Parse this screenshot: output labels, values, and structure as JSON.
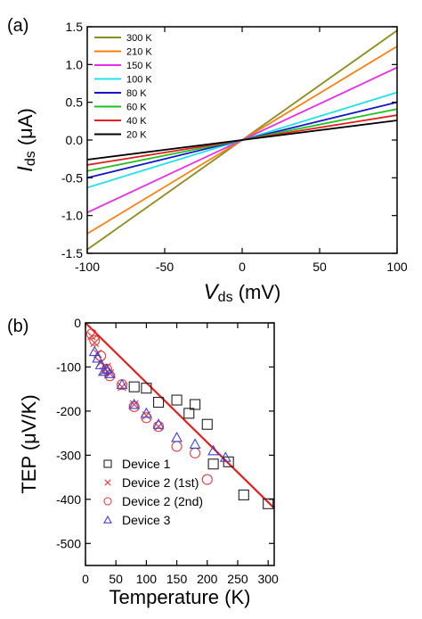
{
  "chart_data": [
    {
      "type": "line",
      "panel_label": "(a)",
      "xlabel_main": "V",
      "xlabel_sub": "ds",
      "xlabel_unit": " (mV)",
      "ylabel_main": "I",
      "ylabel_sub": "ds",
      "ylabel_unit": " (μA)",
      "xlim": [
        -100,
        100
      ],
      "ylim": [
        -1.5,
        1.5
      ],
      "xticks": [
        -100,
        -50,
        0,
        50,
        100
      ],
      "yticks": [
        -1.5,
        -1.0,
        -0.5,
        0.0,
        0.5,
        1.0,
        1.5
      ],
      "legend_position": "top-left",
      "series": [
        {
          "name": "300 K",
          "color": "#8c8c1f",
          "x": [
            -100,
            100
          ],
          "y": [
            -1.45,
            1.45
          ]
        },
        {
          "name": "210 K",
          "color": "#ff7f0e",
          "x": [
            -100,
            100
          ],
          "y": [
            -1.24,
            1.24
          ]
        },
        {
          "name": "150 K",
          "color": "#e62ee6",
          "x": [
            -100,
            100
          ],
          "y": [
            -0.96,
            0.96
          ]
        },
        {
          "name": "100 K",
          "color": "#22e0e8",
          "x": [
            -100,
            100
          ],
          "y": [
            -0.63,
            0.63
          ]
        },
        {
          "name": "80 K",
          "color": "#1414c8",
          "x": [
            -100,
            100
          ],
          "y": [
            -0.5,
            0.5
          ]
        },
        {
          "name": "60 K",
          "color": "#22c022",
          "x": [
            -100,
            100
          ],
          "y": [
            -0.41,
            0.41
          ]
        },
        {
          "name": "40 K",
          "color": "#e02020",
          "x": [
            -100,
            100
          ],
          "y": [
            -0.33,
            0.33
          ]
        },
        {
          "name": "20 K",
          "color": "#000000",
          "x": [
            -100,
            100
          ],
          "y": [
            -0.26,
            0.26
          ]
        }
      ]
    },
    {
      "type": "scatter",
      "panel_label": "(b)",
      "xlabel": "Temperature (K)",
      "ylabel": "TEP (μV/K)",
      "xlim": [
        0,
        310
      ],
      "ylim": [
        -550,
        0
      ],
      "xticks": [
        0,
        50,
        100,
        150,
        200,
        250,
        300
      ],
      "yticks": [
        0,
        -100,
        -200,
        -300,
        -400,
        -500
      ],
      "legend_position": "bottom-left",
      "fit_line": {
        "color": "#e02020",
        "x": [
          0,
          310
        ],
        "y": [
          0,
          -420
        ]
      },
      "series": [
        {
          "name": "Device 1",
          "marker": "square",
          "color": "#222222",
          "x": [
            80,
            100,
            120,
            150,
            170,
            180,
            200,
            210,
            235,
            260,
            300
          ],
          "y": [
            -145,
            -148,
            -180,
            -175,
            -205,
            -185,
            -230,
            -320,
            -315,
            -390,
            -410
          ]
        },
        {
          "name": "Device 2 (1st)",
          "marker": "cross",
          "color": "#e04040",
          "x": [
            10,
            15,
            20,
            25,
            30,
            35,
            40,
            60,
            80,
            100,
            120
          ],
          "y": [
            -30,
            -45,
            -70,
            -90,
            -110,
            -100,
            -115,
            -145,
            -185,
            -210,
            -235
          ]
        },
        {
          "name": "Device 2 (2nd)",
          "marker": "circle",
          "color": "#e04040",
          "x": [
            10,
            15,
            25,
            35,
            40,
            60,
            80,
            100,
            120,
            150,
            180,
            200
          ],
          "y": [
            -25,
            -40,
            -75,
            -105,
            -120,
            -140,
            -190,
            -215,
            -235,
            -280,
            -295,
            -355
          ]
        },
        {
          "name": "Device 3",
          "marker": "triangle",
          "color": "#4040d0",
          "x": [
            15,
            20,
            25,
            30,
            35,
            40,
            60,
            80,
            100,
            120,
            150,
            180,
            210,
            230
          ],
          "y": [
            -65,
            -80,
            -95,
            -110,
            -105,
            -115,
            -140,
            -185,
            -205,
            -230,
            -260,
            -275,
            -290,
            -305
          ]
        }
      ]
    }
  ]
}
